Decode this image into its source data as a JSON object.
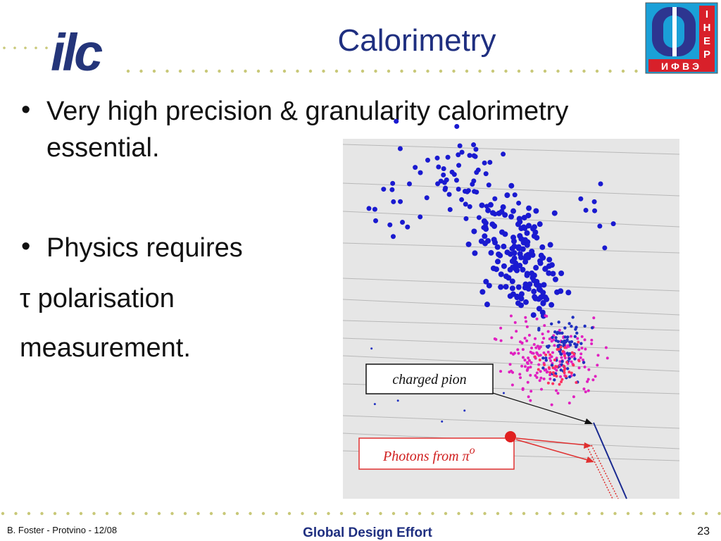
{
  "header": {
    "title": "Calorimetry",
    "logo": "ilc",
    "institute_logo": {
      "latin": [
        "I",
        "H",
        "E",
        "P"
      ],
      "cyrillic": "ИФВЭ"
    }
  },
  "body": {
    "bullets": [
      "Very high precision & granularity calorimetry",
      "essential.",
      "Physics requires"
    ],
    "lines": [
      "τ polarisation",
      "measurement."
    ]
  },
  "figure": {
    "labels": [
      "charged pion",
      "Photons from π"
    ],
    "superscript": "o"
  },
  "footer": {
    "author": "B. Foster - Protvino - 12/08",
    "organisation": "Global Design Effort",
    "page": "23"
  }
}
